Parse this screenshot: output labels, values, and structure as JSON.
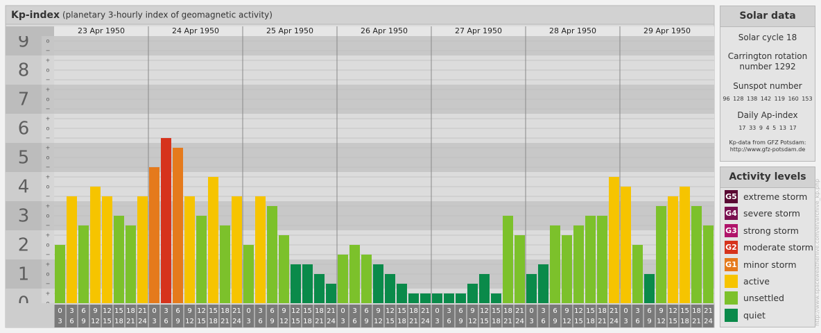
{
  "chart_data": {
    "type": "bar",
    "title": "Kp-index",
    "subtitle": "(planetary 3-hourly index of geomagnetic activity)",
    "days": [
      "23 Apr 1950",
      "24 Apr 1950",
      "25 Apr 1950",
      "26 Apr 1950",
      "27 Apr 1950",
      "28 Apr 1950",
      "29 Apr 1950"
    ],
    "hours": [
      0,
      3,
      6,
      9,
      12,
      15,
      18,
      21,
      24
    ],
    "values": [
      2,
      3.667,
      2.667,
      4,
      3.667,
      3,
      2.667,
      3.667,
      4.667,
      5.667,
      5.333,
      3.667,
      3,
      4.333,
      2.667,
      3.667,
      2,
      3.667,
      3.333,
      2.333,
      1.333,
      1.333,
      1,
      0.667,
      1.667,
      2,
      1.667,
      1.333,
      1,
      0.667,
      0.333,
      0.333,
      0.333,
      0.333,
      0.333,
      0.667,
      1,
      0.333,
      3,
      2.333,
      1,
      1.333,
      2.667,
      2.333,
      2.667,
      3,
      3,
      4.333,
      4,
      2,
      1,
      3.333,
      3.667,
      4,
      3.333,
      2.667
    ],
    "colors": [
      "#7cc12b",
      "#f6c400",
      "#7cc12b",
      "#f6c400",
      "#f6c400",
      "#7cc12b",
      "#7cc12b",
      "#f6c400",
      "#e57a1c",
      "#d6331c",
      "#e57a1c",
      "#f6c400",
      "#7cc12b",
      "#f6c400",
      "#7cc12b",
      "#f6c400",
      "#7cc12b",
      "#f6c400",
      "#7cc12b",
      "#7cc12b",
      "#0a8a4a",
      "#0a8a4a",
      "#0a8a4a",
      "#0a8a4a",
      "#7cc12b",
      "#7cc12b",
      "#7cc12b",
      "#0a8a4a",
      "#0a8a4a",
      "#0a8a4a",
      "#0a8a4a",
      "#0a8a4a",
      "#0a8a4a",
      "#0a8a4a",
      "#0a8a4a",
      "#0a8a4a",
      "#0a8a4a",
      "#0a8a4a",
      "#7cc12b",
      "#7cc12b",
      "#0a8a4a",
      "#0a8a4a",
      "#7cc12b",
      "#7cc12b",
      "#7cc12b",
      "#7cc12b",
      "#7cc12b",
      "#f6c400",
      "#f6c400",
      "#7cc12b",
      "#0a8a4a",
      "#7cc12b",
      "#f6c400",
      "#f6c400",
      "#7cc12b",
      "#7cc12b"
    ],
    "ylim": [
      0,
      9.333
    ],
    "yticks": [
      0,
      1,
      2,
      3,
      4,
      5,
      6,
      7,
      8,
      9
    ],
    "subticks": [
      {
        "value": 9,
        "label": "o"
      },
      {
        "value": 8.667,
        "label": "−"
      },
      {
        "value": 8.333,
        "label": "+"
      },
      {
        "value": 8,
        "label": "o"
      },
      {
        "value": 7.667,
        "label": "−"
      },
      {
        "value": 7.333,
        "label": "+"
      },
      {
        "value": 7,
        "label": "o"
      },
      {
        "value": 6.667,
        "label": "−"
      },
      {
        "value": 6.333,
        "label": "+"
      },
      {
        "value": 6,
        "label": "o"
      },
      {
        "value": 5.667,
        "label": "−"
      },
      {
        "value": 5.333,
        "label": "+"
      },
      {
        "value": 5,
        "label": "o"
      },
      {
        "value": 4.667,
        "label": "−"
      },
      {
        "value": 4.333,
        "label": "+"
      },
      {
        "value": 4,
        "label": "o"
      },
      {
        "value": 3.667,
        "label": "−"
      },
      {
        "value": 3.333,
        "label": "+"
      },
      {
        "value": 3,
        "label": "o"
      },
      {
        "value": 2.667,
        "label": "−"
      },
      {
        "value": 2.333,
        "label": "+"
      },
      {
        "value": 2,
        "label": "o"
      },
      {
        "value": 1.667,
        "label": "−"
      },
      {
        "value": 1.333,
        "label": "+"
      },
      {
        "value": 1,
        "label": "o"
      },
      {
        "value": 0.667,
        "label": "−"
      },
      {
        "value": 0.333,
        "label": "+"
      },
      {
        "value": 0,
        "label": "o"
      }
    ],
    "grid": true
  },
  "solar_data": {
    "title": "Solar data",
    "cycle": "Solar cycle 18",
    "carrington": "Carrington rotation number 1292",
    "sunspot_title": "Sunspot number",
    "sunspot": [
      96,
      128,
      138,
      142,
      119,
      160,
      153
    ],
    "ap_title": "Daily Ap-index",
    "ap": [
      17,
      33,
      9,
      4,
      5,
      13,
      17
    ],
    "source": "Kp-data from GFZ Potsdam:",
    "url": "http://www.gfz-potsdam.de"
  },
  "activity_levels": {
    "title": "Activity levels",
    "items": [
      {
        "code": "G5",
        "name": "extreme storm",
        "color": "#5a0a33"
      },
      {
        "code": "G4",
        "name": "severe storm",
        "color": "#7a1050"
      },
      {
        "code": "G3",
        "name": "strong storm",
        "color": "#b0136a"
      },
      {
        "code": "G2",
        "name": "moderate storm",
        "color": "#d6331c"
      },
      {
        "code": "G1",
        "name": "minor storm",
        "color": "#e57a1c"
      },
      {
        "name": "active",
        "color": "#f6c400"
      },
      {
        "name": "unsettled",
        "color": "#7cc12b"
      },
      {
        "name": "quiet",
        "color": "#0a8a4a"
      }
    ]
  },
  "watermark": "http://www.spaceweatherlive.com/en/archive_kp.php"
}
